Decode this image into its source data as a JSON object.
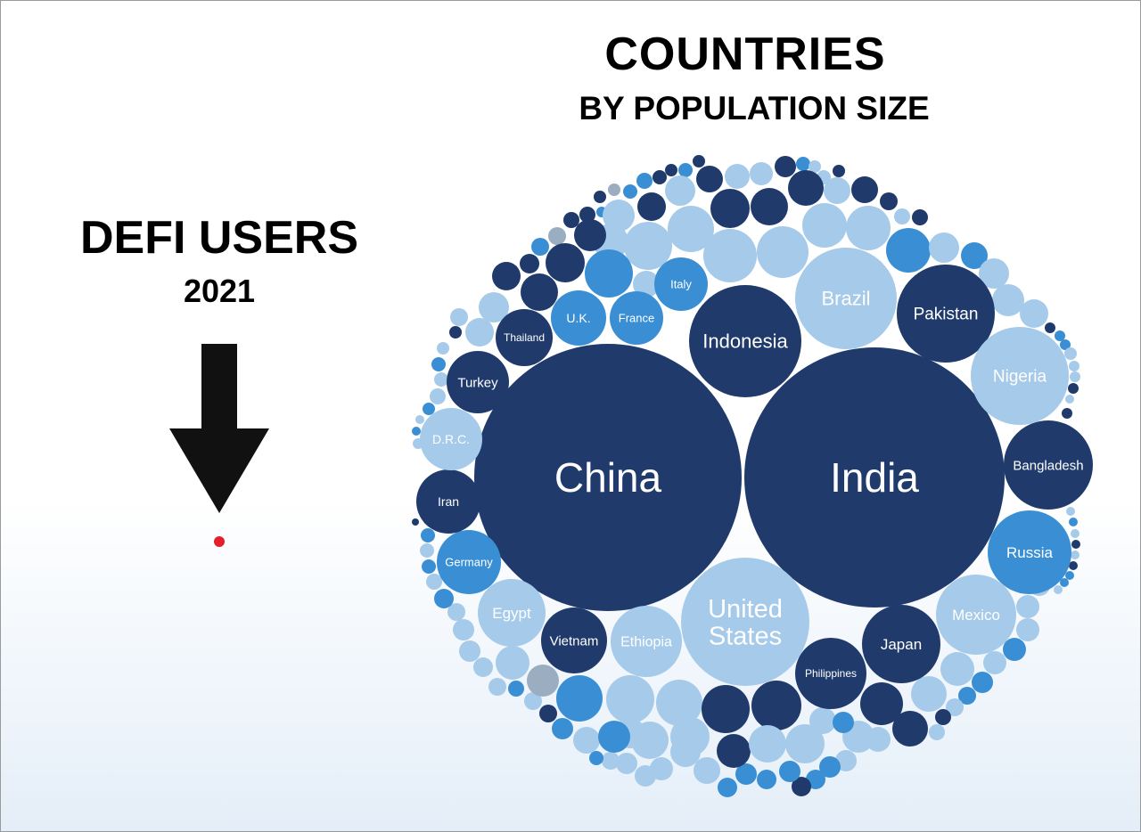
{
  "title": "COUNTRIES",
  "subtitle": "BY POPULATION SIZE",
  "left_panel": {
    "title": "DEFI USERS",
    "year": "2021"
  },
  "colors": {
    "dark": "#1f3a6b",
    "mid": "#3a8fd4",
    "light": "#a6cae9",
    "gray": "#9badc0",
    "defi_dot": "#e3202a"
  },
  "chart_data": {
    "type": "bubble",
    "title": "COUNTRIES",
    "subtitle": "BY POPULATION SIZE",
    "labeled_bubbles": [
      {
        "label": "China",
        "color": "dark"
      },
      {
        "label": "India",
        "color": "dark"
      },
      {
        "label": "United States",
        "label_lines": [
          "United",
          "States"
        ],
        "color": "light"
      },
      {
        "label": "Indonesia",
        "color": "dark"
      },
      {
        "label": "Brazil",
        "color": "light"
      },
      {
        "label": "Pakistan",
        "color": "dark"
      },
      {
        "label": "Nigeria",
        "color": "light"
      },
      {
        "label": "Bangladesh",
        "color": "dark"
      },
      {
        "label": "Russia",
        "color": "mid"
      },
      {
        "label": "Mexico",
        "color": "light"
      },
      {
        "label": "Japan",
        "color": "dark"
      },
      {
        "label": "Philippines",
        "color": "dark"
      },
      {
        "label": "Ethiopia",
        "color": "light"
      },
      {
        "label": "Vietnam",
        "color": "dark"
      },
      {
        "label": "Egypt",
        "color": "light"
      },
      {
        "label": "Germany",
        "color": "mid"
      },
      {
        "label": "Iran",
        "color": "dark"
      },
      {
        "label": "D.R.C.",
        "color": "light"
      },
      {
        "label": "Turkey",
        "color": "dark"
      },
      {
        "label": "Thailand",
        "color": "dark"
      },
      {
        "label": "U.K.",
        "color": "mid"
      },
      {
        "label": "France",
        "color": "mid"
      },
      {
        "label": "Italy",
        "color": "mid"
      }
    ],
    "unlabeled_bubble_colors": [
      "dark",
      "mid",
      "light",
      "gray"
    ]
  }
}
